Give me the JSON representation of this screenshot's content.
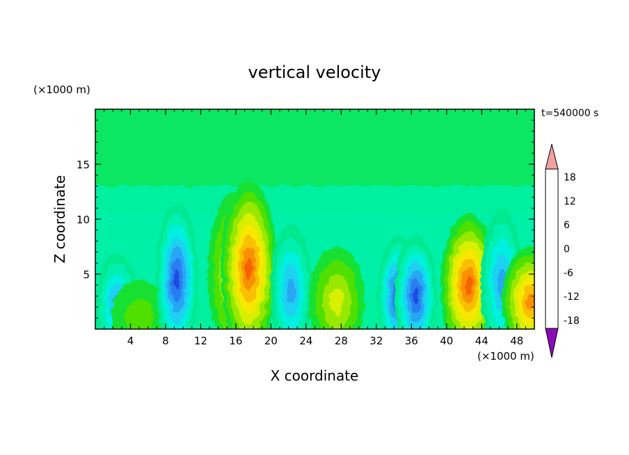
{
  "chart_data": {
    "type": "heatmap",
    "title": "vertical velocity",
    "xlabel": "X coordinate",
    "ylabel": "Z coordinate",
    "x_unit": "(×1000 m)",
    "y_unit": "(×1000 m)",
    "time_label": "t=540000 s",
    "xlim": [
      0,
      50
    ],
    "ylim": [
      0,
      20
    ],
    "x_ticks": [
      4,
      8,
      12,
      16,
      20,
      24,
      28,
      32,
      36,
      40,
      44,
      48
    ],
    "x_tick_labels": [
      "4",
      "8",
      "12",
      "16",
      "20",
      "24",
      "28",
      "32",
      "36",
      "40",
      "44",
      "48"
    ],
    "y_ticks": [
      5,
      10,
      15
    ],
    "y_tick_labels": [
      "5",
      "10",
      "15"
    ],
    "colorbar": {
      "levels": [
        -20,
        -18,
        -16,
        -14,
        -12,
        -10,
        -8,
        -6,
        -4,
        -2,
        0,
        2,
        4,
        6,
        8,
        10,
        12,
        14,
        16,
        18,
        20
      ],
      "tick_values": [
        -18,
        -12,
        -6,
        0,
        6,
        12,
        18
      ],
      "tick_labels": [
        "-18",
        "-12",
        "-6",
        "0",
        "6",
        "12",
        "18"
      ],
      "colors": [
        "#5a1fa0",
        "#2a1fb4",
        "#1230c8",
        "#1a4ee0",
        "#2a7cf0",
        "#28a8f5",
        "#1ed2f0",
        "#00f0e0",
        "#00f0b0",
        "#00e890",
        "#18e030",
        "#50e000",
        "#98e800",
        "#d8f000",
        "#f8e800",
        "#f8c000",
        "#f89000",
        "#f86000",
        "#f83000",
        "#e80000"
      ],
      "under_color": "#8a0ab8",
      "over_color": "#f4a0a0"
    },
    "features": [
      {
        "x": 2.5,
        "z": 2.2,
        "w": -9
      },
      {
        "x": 5.0,
        "z": 1.0,
        "w": 3
      },
      {
        "x": 9.3,
        "z": 4.5,
        "w": -13
      },
      {
        "x": 16.0,
        "z": 5.0,
        "w": 8
      },
      {
        "x": 17.5,
        "z": 5.5,
        "w": 15
      },
      {
        "x": 22.3,
        "z": 3.5,
        "w": -8
      },
      {
        "x": 27.5,
        "z": 2.5,
        "w": 6
      },
      {
        "x": 34.5,
        "z": 3.0,
        "w": -13
      },
      {
        "x": 36.5,
        "z": 3.0,
        "w": -12
      },
      {
        "x": 42.5,
        "z": 4.0,
        "w": 14
      },
      {
        "x": 46.3,
        "z": 4.2,
        "w": -9
      },
      {
        "x": 49.5,
        "z": 2.5,
        "w": 12
      }
    ]
  }
}
